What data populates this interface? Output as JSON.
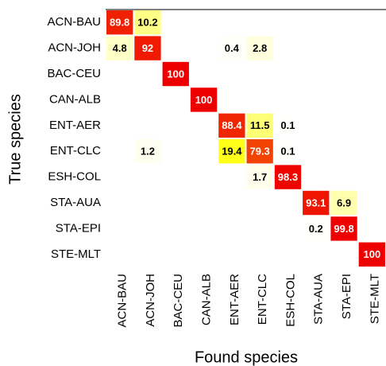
{
  "chart_data": {
    "type": "heatmap",
    "xlabel": "Found species",
    "ylabel": "True species",
    "columns": [
      "ACN-BAU",
      "ACN-JOH",
      "BAC-CEU",
      "CAN-ALB",
      "ENT-AER",
      "ENT-CLC",
      "ESH-COL",
      "STA-AUA",
      "STA-EPI",
      "STE-MLT"
    ],
    "rows": [
      "ACN-BAU",
      "ACN-JOH",
      "BAC-CEU",
      "CAN-ALB",
      "ENT-AER",
      "ENT-CLC",
      "ESH-COL",
      "STA-AUA",
      "STA-EPI",
      "STE-MLT"
    ],
    "values": [
      [
        89.8,
        10.2,
        null,
        null,
        null,
        null,
        null,
        null,
        null,
        null
      ],
      [
        4.8,
        92,
        null,
        null,
        0.4,
        2.8,
        null,
        null,
        null,
        null
      ],
      [
        null,
        null,
        100,
        null,
        null,
        null,
        null,
        null,
        null,
        null
      ],
      [
        null,
        null,
        null,
        100,
        null,
        null,
        null,
        null,
        null,
        null
      ],
      [
        null,
        null,
        null,
        null,
        88.4,
        11.5,
        0.1,
        null,
        null,
        null
      ],
      [
        null,
        1.2,
        null,
        null,
        19.4,
        79.3,
        0.1,
        null,
        null,
        null
      ],
      [
        null,
        null,
        null,
        null,
        null,
        1.7,
        98.3,
        null,
        null,
        null
      ],
      [
        null,
        null,
        null,
        null,
        null,
        null,
        null,
        93.1,
        6.9,
        null
      ],
      [
        null,
        null,
        null,
        null,
        null,
        null,
        null,
        0.2,
        99.8,
        null
      ],
      [
        null,
        null,
        null,
        null,
        null,
        null,
        null,
        null,
        null,
        100
      ]
    ],
    "colorscale": [
      [
        0,
        "#ffffff"
      ],
      [
        20,
        "#ffff10"
      ],
      [
        100,
        "#ee0000"
      ]
    ]
  }
}
